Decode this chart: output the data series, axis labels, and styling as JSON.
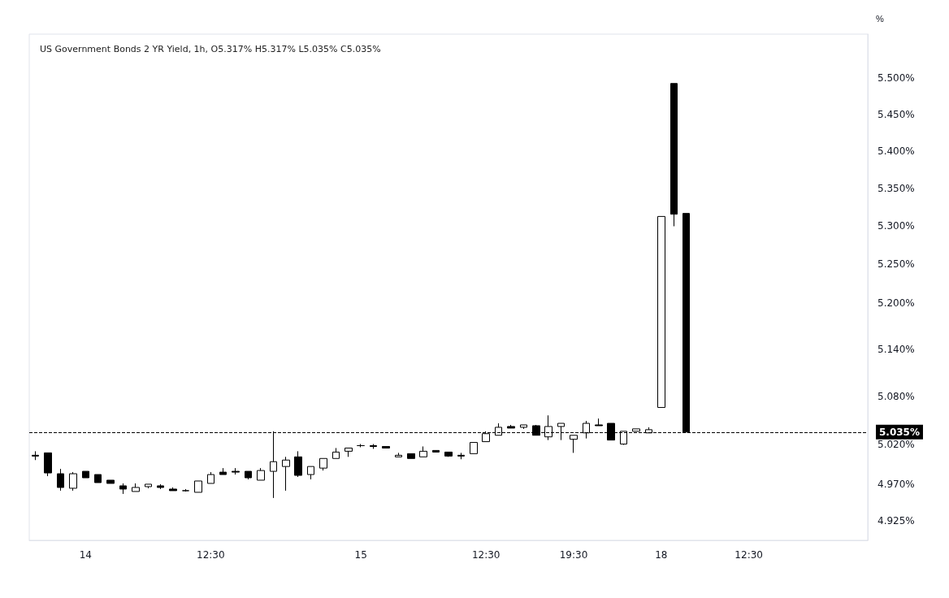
{
  "chart_data": {
    "type": "candlestick",
    "title": "US Government Bonds 2 YR Yield, 1h, O5.317% H5.317% L5.035% C5.035%",
    "ylabel": "%",
    "categories": [
      null,
      null,
      null,
      null,
      "14",
      null,
      null,
      null,
      null,
      null,
      null,
      null,
      null,
      null,
      "12:30",
      null,
      null,
      null,
      null,
      null,
      null,
      null,
      null,
      null,
      null,
      null,
      "15",
      null,
      null,
      null,
      null,
      null,
      null,
      null,
      null,
      null,
      "12:30",
      null,
      null,
      null,
      null,
      null,
      null,
      "19:30",
      null,
      null,
      null,
      null,
      null,
      null,
      "18",
      null,
      null,
      null,
      null,
      null,
      null,
      "12:30",
      null,
      null,
      null,
      null,
      null,
      null,
      null,
      null,
      null
    ],
    "ohlc": [
      [
        5.006,
        5.011,
        5.0,
        5.005
      ],
      [
        5.009,
        5.009,
        4.98,
        4.984
      ],
      [
        4.983,
        4.989,
        4.962,
        4.966
      ],
      [
        4.965,
        4.985,
        4.962,
        4.983
      ],
      [
        4.986,
        4.986,
        4.978,
        4.978
      ],
      [
        4.982,
        4.982,
        4.972,
        4.972
      ],
      [
        4.975,
        4.975,
        4.971,
        4.971
      ],
      [
        4.968,
        4.971,
        4.958,
        4.964
      ],
      [
        4.961,
        4.971,
        4.961,
        4.966
      ],
      [
        4.967,
        4.97,
        4.965,
        4.97
      ],
      [
        4.968,
        4.97,
        4.964,
        4.966
      ],
      [
        4.964,
        4.966,
        4.962,
        4.962
      ],
      [
        4.962,
        4.964,
        4.961,
        4.962
      ],
      [
        4.96,
        4.974,
        4.96,
        4.974
      ],
      [
        4.971,
        4.985,
        4.971,
        4.982
      ],
      [
        4.985,
        4.99,
        4.982,
        4.982
      ],
      [
        4.986,
        4.99,
        4.982,
        4.985
      ],
      [
        4.986,
        4.986,
        4.976,
        4.978
      ],
      [
        4.975,
        4.99,
        4.975,
        4.987
      ],
      [
        4.986,
        5.036,
        4.953,
        4.998
      ],
      [
        4.992,
        5.004,
        4.962,
        5.0
      ],
      [
        5.004,
        5.011,
        4.979,
        4.981
      ],
      [
        4.982,
        4.992,
        4.976,
        4.992
      ],
      [
        4.99,
        5.002,
        4.987,
        5.002
      ],
      [
        5.002,
        5.015,
        5.002,
        5.01
      ],
      [
        5.011,
        5.015,
        5.004,
        5.015
      ],
      [
        5.018,
        5.02,
        5.016,
        5.018
      ],
      [
        5.018,
        5.02,
        5.014,
        5.017
      ],
      [
        5.017,
        5.017,
        5.015,
        5.015
      ],
      [
        5.004,
        5.009,
        5.004,
        5.006
      ],
      [
        5.008,
        5.008,
        5.002,
        5.002
      ],
      [
        5.004,
        5.017,
        5.004,
        5.011
      ],
      [
        5.012,
        5.012,
        5.01,
        5.01
      ],
      [
        5.01,
        5.01,
        5.004,
        5.005
      ],
      [
        5.006,
        5.009,
        5.001,
        5.005
      ],
      [
        5.008,
        5.022,
        5.008,
        5.022
      ],
      [
        5.023,
        5.036,
        5.023,
        5.033
      ],
      [
        5.031,
        5.046,
        5.031,
        5.041
      ],
      [
        5.042,
        5.044,
        5.04,
        5.04
      ],
      [
        5.041,
        5.044,
        5.039,
        5.044
      ],
      [
        5.043,
        5.044,
        5.031,
        5.031
      ],
      [
        5.029,
        5.056,
        5.025,
        5.042
      ],
      [
        5.042,
        5.046,
        5.025,
        5.046
      ],
      [
        5.026,
        5.031,
        5.009,
        5.031
      ],
      [
        5.034,
        5.049,
        5.027,
        5.046
      ],
      [
        5.044,
        5.052,
        5.043,
        5.043
      ],
      [
        5.046,
        5.046,
        5.025,
        5.025
      ],
      [
        5.02,
        5.036,
        5.019,
        5.036
      ],
      [
        5.036,
        5.039,
        5.036,
        5.039
      ],
      [
        5.034,
        5.041,
        5.034,
        5.038
      ],
      [
        5.066,
        5.313,
        5.066,
        5.313
      ],
      [
        5.492,
        5.492,
        5.3,
        5.316
      ],
      [
        5.317,
        5.317,
        5.035,
        5.035
      ],
      null,
      null,
      null,
      null,
      null,
      null,
      null,
      null,
      null,
      null,
      null,
      null,
      null,
      null
    ],
    "colors": [
      "#000000",
      "#000000",
      "#000000",
      "#ffffff",
      "#000000",
      "#000000",
      "#000000",
      "#000000",
      "#ffffff",
      "#ffffff",
      "#000000",
      "#000000",
      "#000000",
      "#ffffff",
      "#ffffff",
      "#000000",
      "#000000",
      "#000000",
      "#ffffff",
      "#ffffff",
      "#ffffff",
      "#000000",
      "#ffffff",
      "#ffffff",
      "#ffffff",
      "#ffffff",
      "#000000",
      "#000000",
      "#000000",
      "#ffffff",
      "#000000",
      "#ffffff",
      "#000000",
      "#000000",
      "#000000",
      "#ffffff",
      "#ffffff",
      "#ffffff",
      "#000000",
      "#ffffff",
      "#000000",
      "#ffffff",
      "#ffffff",
      "#ffffff",
      "#ffffff",
      "#000000",
      "#000000",
      "#ffffff",
      "#ffffff",
      "#ffffff",
      "#ffffff",
      "#000000",
      "#000000",
      null,
      null,
      null,
      null,
      null,
      null,
      null,
      null,
      null,
      null,
      null,
      null,
      null,
      null
    ],
    "log": true,
    "ylim": [
      4.901,
      5.56
    ],
    "yticks": [
      {
        "value": 4.925,
        "label": "4.925%"
      },
      {
        "value": 4.97,
        "label": "4.970%"
      },
      {
        "value": 5.02,
        "label": "5.020%"
      },
      {
        "value": 5.08,
        "label": "5.080%"
      },
      {
        "value": 5.14,
        "label": "5.140%"
      },
      {
        "value": 5.2,
        "label": "5.200%"
      },
      {
        "value": 5.25,
        "label": "5.250%"
      },
      {
        "value": 5.3,
        "label": "5.300%"
      },
      {
        "value": 5.35,
        "label": "5.350%"
      },
      {
        "value": 5.4,
        "label": "5.400%"
      },
      {
        "value": 5.45,
        "label": "5.450%"
      },
      {
        "value": 5.5,
        "label": "5.500%"
      }
    ],
    "ref_lines": [
      {
        "axis": "y",
        "value": 5.035,
        "label": "5.035%",
        "color": "#000000",
        "line_style": "dashed"
      }
    ],
    "grid": false
  }
}
